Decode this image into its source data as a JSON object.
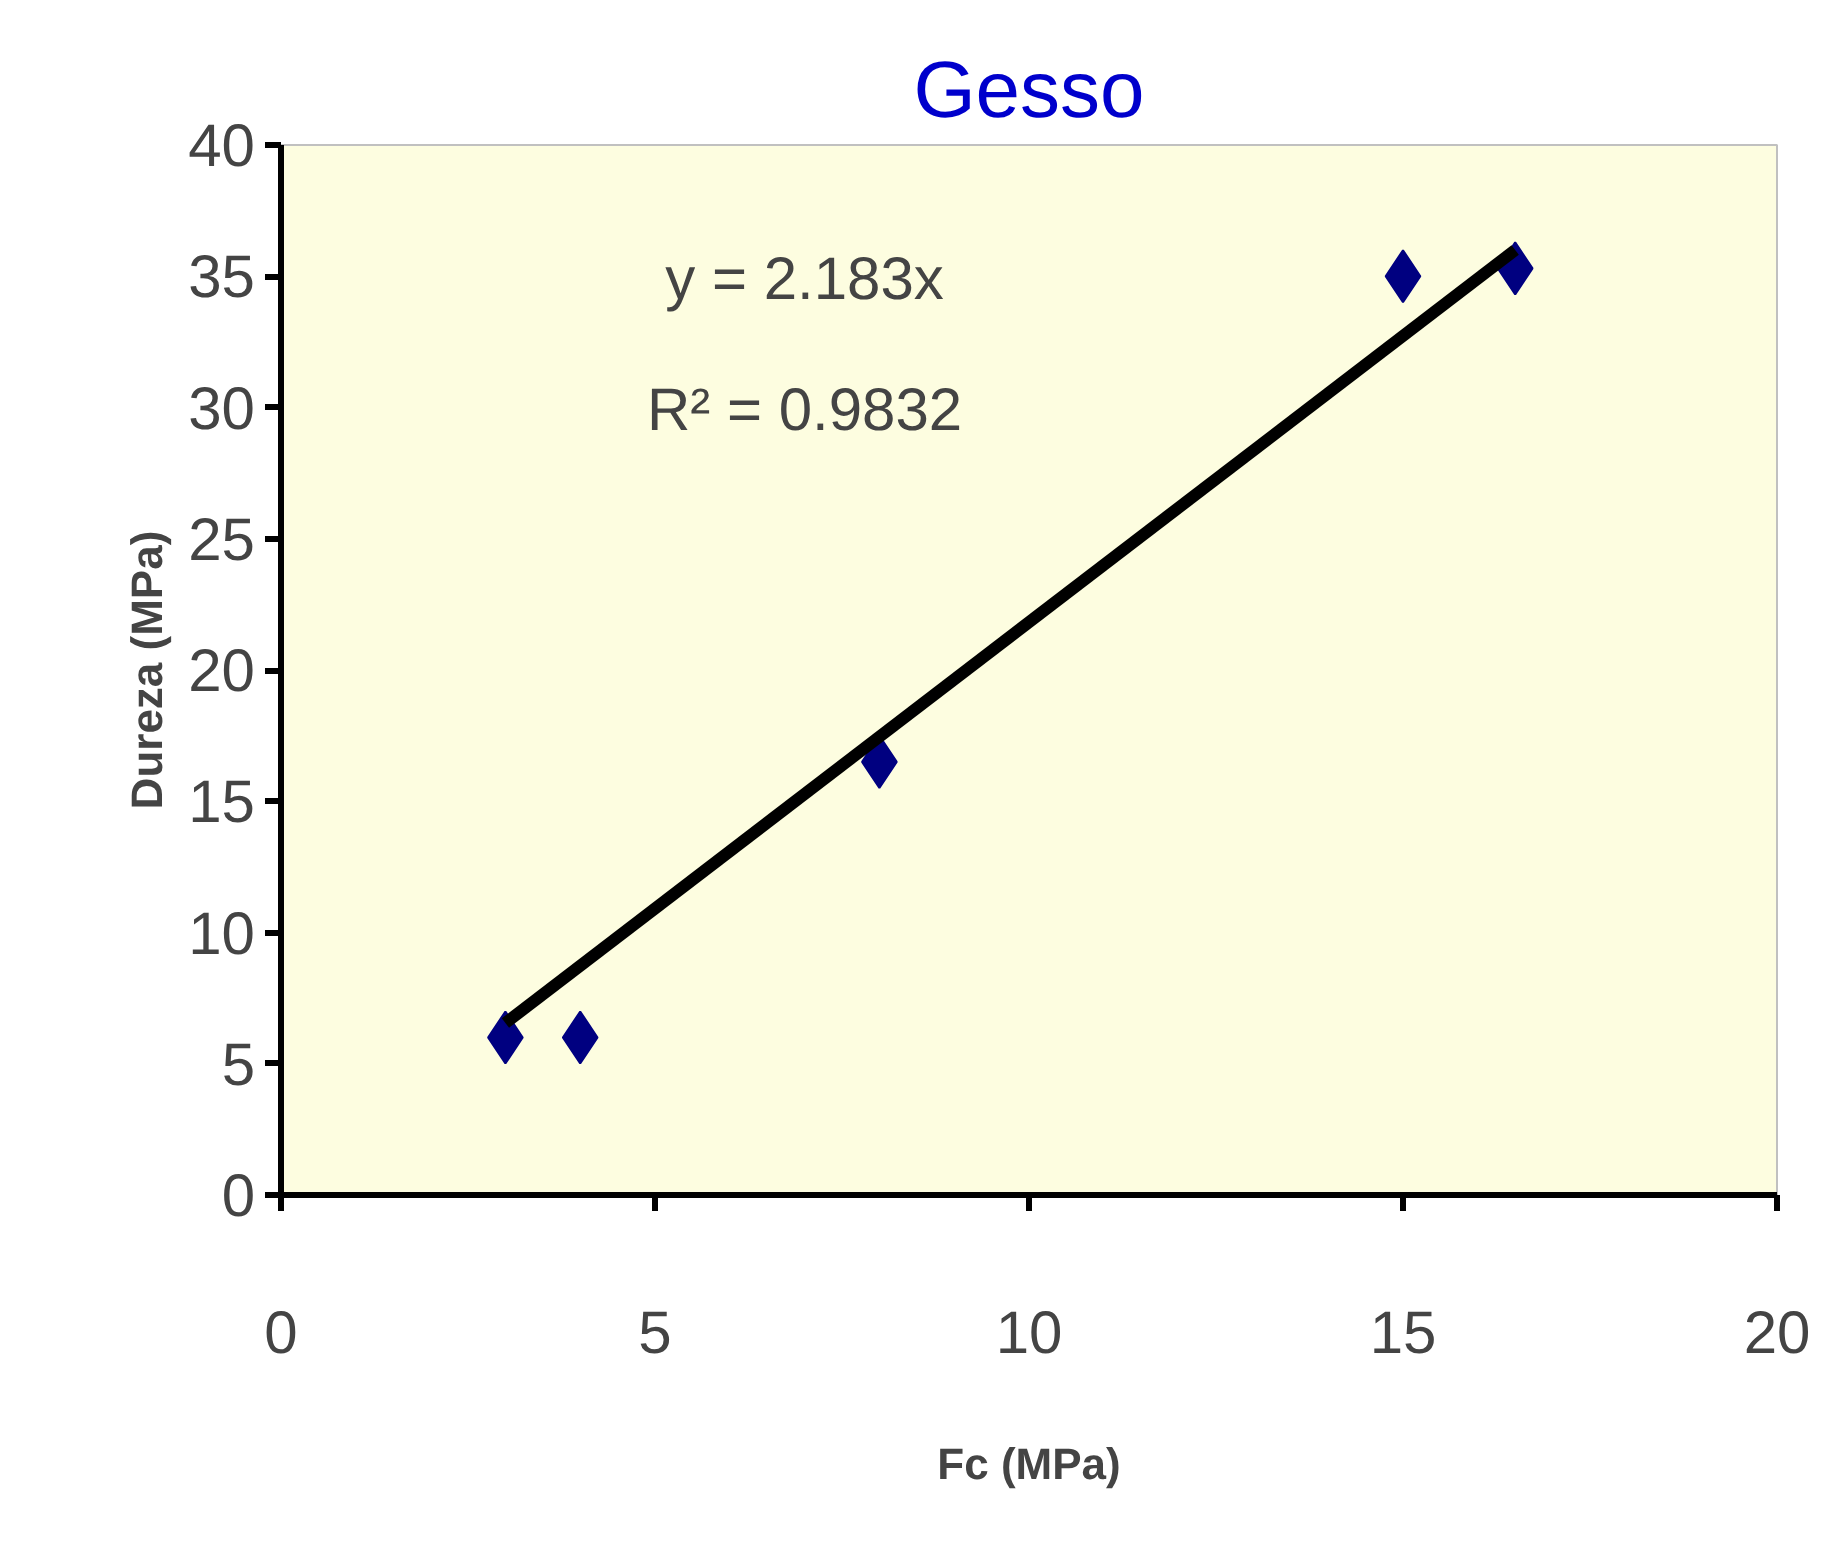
{
  "chart_data": {
    "type": "scatter",
    "title": "Gesso",
    "xlabel": "Fc (MPa)",
    "ylabel": "Dureza (MPa)",
    "x": [
      3,
      4,
      8,
      15,
      16.5
    ],
    "series": [
      {
        "color": "#000080",
        "marker": "diamond",
        "values": [
          6,
          6,
          16.5,
          35,
          35.3
        ]
      },
      {
        "type": "line",
        "color": "#000000",
        "x": [
          3,
          16.5
        ],
        "values": [
          6.55,
          36.0
        ]
      }
    ],
    "xlim": [
      0,
      20
    ],
    "ylim": [
      0,
      40
    ],
    "xticks": [
      0,
      5,
      10,
      15,
      20
    ],
    "yticks": [
      0,
      5,
      10,
      15,
      20,
      25,
      30,
      35,
      40
    ],
    "grid": false,
    "annotations": [
      "y = 2.183x",
      "R² = 0.9832"
    ]
  }
}
